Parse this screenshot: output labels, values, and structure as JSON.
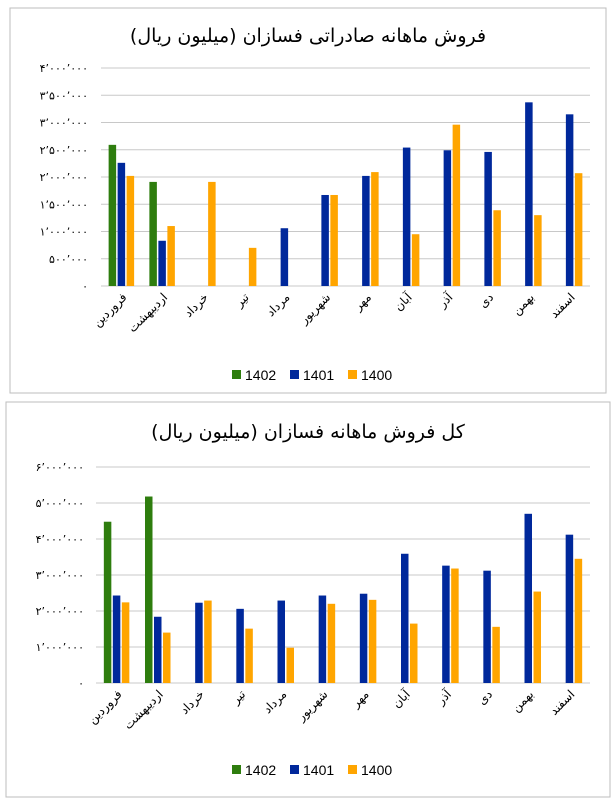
{
  "chart_data": [
    {
      "type": "bar",
      "title": "فروش ماهانه صادراتی فسازان (میلیون ریال)",
      "categories": [
        "فروردین",
        "اردیبهشت",
        "خرداد",
        "تیر",
        "مرداد",
        "شهریور",
        "مهر",
        "آبان",
        "آذر",
        "دی",
        "بهمن",
        "اسفند"
      ],
      "series": [
        {
          "name": "1402",
          "color": "#2e7d0e",
          "values": [
            2590000,
            1910000,
            null,
            null,
            null,
            null,
            null,
            null,
            null,
            null,
            null,
            null
          ]
        },
        {
          "name": "1401",
          "color": "#00289b",
          "values": [
            2260000,
            830000,
            null,
            null,
            1060000,
            1670000,
            2020000,
            2540000,
            2490000,
            2460000,
            3370000,
            3150000
          ]
        },
        {
          "name": "1400",
          "color": "#ffa500",
          "values": [
            2020000,
            1100000,
            1910000,
            700000,
            null,
            1670000,
            2090000,
            950000,
            2960000,
            1390000,
            1300000,
            2070000
          ]
        }
      ],
      "ylim": [
        0,
        4000000
      ],
      "yticks": [
        0,
        500000,
        1000000,
        1500000,
        2000000,
        2500000,
        3000000,
        3500000,
        4000000
      ],
      "ytick_labels": [
        "۰",
        "۵۰۰٬۰۰۰",
        "۱٬۰۰۰٬۰۰۰",
        "۱٬۵۰۰٬۰۰۰",
        "۲٬۰۰۰٬۰۰۰",
        "۲٬۵۰۰٬۰۰۰",
        "۳٬۰۰۰٬۰۰۰",
        "۳٬۵۰۰٬۰۰۰",
        "۴٬۰۰۰٬۰۰۰"
      ],
      "grid": true,
      "legend": "bottom"
    },
    {
      "type": "bar",
      "title": "کل فروش ماهانه فسازان (میلیون ریال)",
      "categories": [
        "فروردین",
        "اردیبهشت",
        "خرداد",
        "تیر",
        "مرداد",
        "شهریور",
        "مهر",
        "آبان",
        "آذر",
        "دی",
        "بهمن",
        "اسفند"
      ],
      "series": [
        {
          "name": "1402",
          "color": "#2e7d0e",
          "values": [
            4480000,
            5180000,
            null,
            null,
            null,
            null,
            null,
            null,
            null,
            null,
            null,
            null
          ]
        },
        {
          "name": "1401",
          "color": "#00289b",
          "values": [
            2430000,
            1840000,
            2230000,
            2060000,
            2290000,
            2430000,
            2480000,
            3590000,
            3260000,
            3120000,
            4700000,
            4120000
          ]
        },
        {
          "name": "1400",
          "color": "#ffa500",
          "values": [
            2240000,
            1400000,
            2290000,
            1510000,
            980000,
            2200000,
            2310000,
            1650000,
            3180000,
            1560000,
            2540000,
            3450000
          ]
        }
      ],
      "ylim": [
        0,
        6000000
      ],
      "yticks": [
        0,
        1000000,
        2000000,
        3000000,
        4000000,
        5000000,
        6000000
      ],
      "ytick_labels": [
        "۰",
        "۱٬۰۰۰٬۰۰۰",
        "۲٬۰۰۰٬۰۰۰",
        "۳٬۰۰۰٬۰۰۰",
        "۴٬۰۰۰٬۰۰۰",
        "۵٬۰۰۰٬۰۰۰",
        "۶٬۰۰۰٬۰۰۰"
      ],
      "grid": true,
      "legend": "bottom"
    }
  ]
}
